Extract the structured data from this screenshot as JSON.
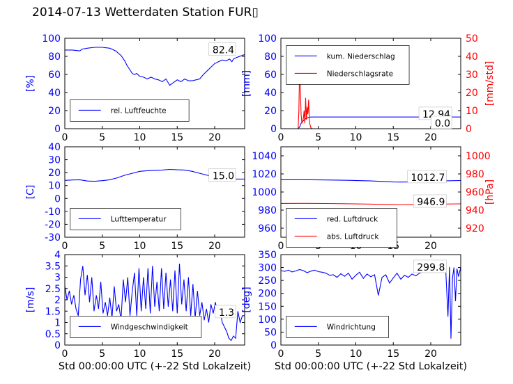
{
  "title": "2014-07-13 Wetterdaten Station FUR▯",
  "xlabel": "Std 00:00:00 UTC (+-22 Std Lokalzeit)",
  "colors": {
    "primary": "#0000ff",
    "secondary": "#ff0000",
    "axis": "#000000"
  },
  "chart_data": [
    {
      "type": "line",
      "panel": "top-left",
      "xlim": [
        0,
        24
      ],
      "xticks": [
        0,
        5,
        10,
        15,
        20
      ],
      "ylim": [
        0,
        100
      ],
      "yticks": [
        0,
        20,
        40,
        60,
        80,
        100
      ],
      "ylabel": "[%]",
      "legend_placement": "bottom-left",
      "series": [
        {
          "name": "rel. Luftfeuchte",
          "color": "#0000ff",
          "axis": "left",
          "x": [
            0,
            1,
            2,
            2.3,
            3,
            4,
            5,
            6,
            6.8,
            7.5,
            8,
            8.3,
            8.7,
            9,
            9.3,
            9.6,
            10,
            10.5,
            11,
            11.5,
            12,
            12.5,
            13,
            13.5,
            14,
            14.5,
            15,
            15.5,
            16,
            16.5,
            17,
            17.5,
            18,
            18.5,
            19,
            19.5,
            20,
            20.5,
            21,
            21.5,
            22,
            22.3,
            22.5,
            23,
            24
          ],
          "y": [
            87,
            87,
            86,
            88,
            89,
            90,
            90,
            89,
            86,
            81,
            75,
            70,
            65,
            61,
            60,
            61,
            58,
            57,
            55,
            57,
            55,
            54,
            52,
            55,
            48,
            51,
            54,
            52,
            55,
            53,
            53,
            54,
            55,
            60,
            64,
            68,
            72,
            74,
            76,
            75,
            77,
            74,
            77,
            79,
            82
          ]
        }
      ],
      "annotations": [
        "82.4"
      ]
    },
    {
      "type": "line",
      "panel": "top-right",
      "xlim": [
        0,
        24
      ],
      "xticks": [
        0,
        5,
        10,
        15,
        20
      ],
      "ylim": [
        0,
        100
      ],
      "yticks": [
        0,
        20,
        40,
        60,
        80,
        100
      ],
      "ylabel": "[mm]",
      "y2lim": [
        0,
        50
      ],
      "y2ticks": [
        0,
        10,
        20,
        30,
        40,
        50
      ],
      "y2label": "[mm/std]",
      "legend_placement": "top-left",
      "series": [
        {
          "name": "kum. Niederschlag",
          "color": "#0000ff",
          "axis": "left",
          "x": [
            0,
            2.3,
            2.5,
            2.7,
            3,
            3.3,
            3.7,
            4,
            24
          ],
          "y": [
            0,
            0,
            2,
            6,
            9,
            11,
            12.5,
            12.9,
            12.94
          ]
        },
        {
          "name": "Niederschlagsrate",
          "color": "#ff0000",
          "axis": "right",
          "x": [
            0,
            2.3,
            2.4,
            2.5,
            2.6,
            2.7,
            2.8,
            2.9,
            3.0,
            3.1,
            3.2,
            3.3,
            3.4,
            3.5,
            3.6,
            3.7,
            3.8,
            3.9,
            4.0,
            4.2,
            24
          ],
          "y": [
            0,
            0,
            10,
            35,
            22,
            8,
            3,
            4,
            6,
            10,
            3,
            17,
            5,
            12,
            8,
            16,
            4,
            2,
            0.5,
            0,
            0
          ]
        }
      ],
      "annotations": [
        "12.94",
        "0.0"
      ]
    },
    {
      "type": "line",
      "panel": "middle-left",
      "xlim": [
        0,
        24
      ],
      "xticks": [
        0,
        5,
        10,
        15,
        20
      ],
      "ylim": [
        -30,
        40
      ],
      "yticks": [
        -30,
        -20,
        -10,
        0,
        10,
        20,
        30,
        40
      ],
      "ylabel": "[C]",
      "legend_placement": "bottom-left",
      "series": [
        {
          "name": "Lufttemperatur",
          "color": "#0000ff",
          "axis": "left",
          "x": [
            0,
            1,
            2,
            3,
            4,
            5,
            6,
            7,
            8,
            9,
            10,
            11,
            12,
            13,
            14,
            15,
            16,
            17,
            18,
            19,
            20,
            21,
            22,
            23,
            24
          ],
          "y": [
            14,
            14.3,
            14.5,
            13.5,
            13.3,
            13.8,
            14.5,
            16,
            18,
            19.5,
            21,
            21.5,
            21.8,
            22,
            22.5,
            22.2,
            22,
            21,
            19.5,
            18,
            16.5,
            15.5,
            15.3,
            15.0,
            15.0
          ]
        }
      ],
      "annotations": [
        "15.0"
      ]
    },
    {
      "type": "line",
      "panel": "middle-right",
      "xlim": [
        0,
        24
      ],
      "xticks": [
        0,
        5,
        10,
        15,
        20
      ],
      "ylim": [
        950,
        1050
      ],
      "yticks": [
        960,
        980,
        1000,
        1020,
        1040
      ],
      "y2lim": [
        910,
        1010
      ],
      "y2ticks": [
        920,
        940,
        960,
        980,
        1000
      ],
      "y2label": "[hPa]",
      "legend_placement": "bottom-left",
      "series": [
        {
          "name": "red. Luftdruck",
          "color": "#0000ff",
          "axis": "left",
          "x": [
            0,
            3,
            6,
            9,
            12,
            15,
            16,
            18,
            20,
            22,
            24
          ],
          "y": [
            1013.5,
            1013.6,
            1013.3,
            1012.9,
            1012.2,
            1011.1,
            1011.0,
            1011.2,
            1011.8,
            1012.4,
            1012.7
          ]
        },
        {
          "name": "abs. Luftdruck",
          "color": "#ff0000",
          "axis": "right",
          "x": [
            0,
            3,
            6,
            9,
            12,
            15,
            16,
            18,
            20,
            22,
            24
          ],
          "y": [
            947.4,
            947.5,
            947.3,
            947.0,
            946.6,
            945.9,
            945.8,
            946.0,
            946.4,
            946.7,
            946.9
          ]
        }
      ],
      "annotations": [
        "1012.7",
        "946.9"
      ]
    },
    {
      "type": "line",
      "panel": "bottom-left",
      "xlim": [
        0,
        24
      ],
      "xticks": [
        0,
        5,
        10,
        15,
        20
      ],
      "ylim": [
        0,
        4
      ],
      "yticks": [
        0,
        0.5,
        1.0,
        1.5,
        2.0,
        2.5,
        3.0,
        3.5,
        4.0
      ],
      "ylabel": "[m/s]",
      "legend_placement": "bottom-left",
      "series": [
        {
          "name": "Windgeschwindigkeit",
          "color": "#0000ff",
          "axis": "left",
          "x": [
            0,
            0.3,
            0.6,
            0.9,
            1.2,
            1.5,
            1.8,
            2.1,
            2.4,
            2.7,
            3.0,
            3.3,
            3.6,
            3.9,
            4.2,
            4.5,
            4.8,
            5.1,
            5.4,
            5.7,
            6.0,
            6.3,
            6.6,
            6.9,
            7.2,
            7.5,
            7.8,
            8.1,
            8.4,
            8.7,
            9.0,
            9.3,
            9.6,
            9.9,
            10.2,
            10.5,
            10.8,
            11.1,
            11.4,
            11.7,
            12.0,
            12.3,
            12.6,
            12.9,
            13.2,
            13.5,
            13.8,
            14.1,
            14.4,
            14.7,
            15.0,
            15.3,
            15.6,
            15.9,
            16.2,
            16.5,
            16.8,
            17.1,
            17.4,
            17.7,
            18.0,
            18.3,
            18.6,
            18.9,
            19.2,
            19.5,
            19.8,
            20.1,
            20.4,
            20.7,
            21.0,
            21.3,
            21.6,
            21.9,
            22.2,
            22.5,
            22.8,
            23.1,
            23.4,
            23.7,
            24.0
          ],
          "y": [
            2.6,
            2.0,
            2.4,
            1.8,
            2.2,
            1.6,
            1.3,
            2.9,
            3.5,
            2.2,
            3.1,
            1.9,
            3.0,
            1.5,
            2.2,
            1.6,
            2.8,
            1.4,
            1.9,
            1.3,
            2.1,
            1.2,
            2.6,
            1.5,
            1.8,
            1.1,
            2.9,
            1.9,
            3.0,
            1.3,
            2.4,
            3.2,
            1.3,
            3.4,
            1.5,
            3.0,
            1.6,
            3.4,
            1.4,
            3.5,
            1.7,
            2.8,
            1.5,
            3.4,
            1.6,
            3.2,
            1.7,
            2.9,
            1.5,
            3.3,
            1.4,
            3.6,
            1.8,
            2.9,
            1.5,
            3.0,
            1.3,
            2.7,
            1.2,
            2.4,
            1.3,
            1.9,
            1.1,
            1.6,
            1.0,
            1.8,
            1.4,
            1.9,
            1.3,
            1.6,
            1.0,
            0.8,
            0.6,
            0.3,
            0.2,
            0.4,
            0.3,
            1.5,
            1.0,
            1.3,
            1.3
          ]
        }
      ],
      "annotations": [
        "1.3"
      ]
    },
    {
      "type": "line",
      "panel": "bottom-right",
      "xlim": [
        0,
        24
      ],
      "xticks": [
        0,
        5,
        10,
        15,
        20
      ],
      "ylim": [
        0,
        350
      ],
      "yticks": [
        0,
        50,
        100,
        150,
        200,
        250,
        300,
        350
      ],
      "ylabel": "[deg]",
      "legend_placement": "bottom-left",
      "series": [
        {
          "name": "Windrichtung",
          "color": "#0000ff",
          "axis": "left",
          "x": [
            0,
            0.5,
            1,
            1.5,
            2,
            2.5,
            3,
            3.5,
            4,
            4.5,
            5,
            5.5,
            6,
            6.5,
            7,
            7.5,
            8,
            8.5,
            9,
            9.5,
            10,
            10.5,
            11,
            11.5,
            12,
            12.5,
            13,
            13.5,
            14,
            14.5,
            15,
            15.5,
            16,
            16.5,
            17,
            17.5,
            18,
            18.5,
            19,
            19.5,
            20,
            20.5,
            21,
            21.5,
            22,
            22.3,
            22.5,
            22.7,
            22.9,
            23.1,
            23.3,
            23.5,
            23.7,
            24
          ],
          "y": [
            288,
            285,
            290,
            283,
            287,
            292,
            288,
            280,
            286,
            290,
            284,
            282,
            278,
            270,
            272,
            262,
            276,
            266,
            278,
            255,
            270,
            282,
            258,
            275,
            264,
            272,
            192,
            262,
            272,
            240,
            260,
            278,
            255,
            270,
            262,
            275,
            268,
            278,
            284,
            290,
            296,
            300,
            288,
            294,
            290,
            110,
            302,
            25,
            260,
            300,
            170,
            296,
            265,
            299.8
          ]
        }
      ],
      "annotations": [
        "299.8"
      ]
    }
  ]
}
